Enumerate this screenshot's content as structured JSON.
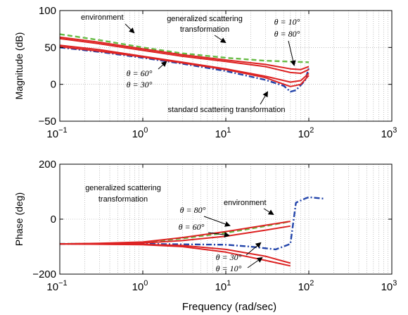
{
  "chart_data": [
    {
      "type": "line",
      "ylabel": "Magnitude (dB)",
      "xlabel": "",
      "xscale": "log",
      "xlim": [
        0.1,
        1000
      ],
      "ylim": [
        -50,
        100
      ],
      "grid": true,
      "x_ticks": [
        {
          "base": "10",
          "exp": "−1",
          "value": 0.1
        },
        {
          "base": "10",
          "exp": "0",
          "value": 1
        },
        {
          "base": "10",
          "exp": "1",
          "value": 10
        },
        {
          "base": "10",
          "exp": "2",
          "value": 100
        },
        {
          "base": "10",
          "exp": "3",
          "value": 1000
        }
      ],
      "y_ticks": [
        "−50",
        "0",
        "50",
        "100"
      ],
      "y_tick_values": [
        -50,
        0,
        50,
        100
      ],
      "annotations": {
        "environment": "environment",
        "generalized_line1": "generalized scattering",
        "generalized_line2": "transformation",
        "theta_a": "θ = 10°",
        "theta_b": "θ = 80°",
        "theta_c": "θ = 60°",
        "theta_d": "θ = 30°",
        "standard": "standard scattering transformation"
      },
      "series": [
        {
          "role": "environment",
          "color": "#66bb44",
          "style": "dashed",
          "x": [
            0.1,
            0.3,
            1,
            3,
            10,
            30,
            100
          ],
          "y": [
            68,
            60,
            50,
            42,
            36,
            32,
            30
          ]
        },
        {
          "role": "standard",
          "color": "#2244aa",
          "style": "dashdot",
          "x": [
            0.1,
            0.3,
            1,
            3,
            10,
            30,
            50,
            60,
            70,
            90,
            100
          ],
          "y": [
            50,
            44,
            36,
            28,
            18,
            6,
            -2,
            -10,
            -8,
            5,
            22
          ]
        },
        {
          "role": "theta-10",
          "color": "#dd2222",
          "style": "solid",
          "x": [
            0.1,
            0.3,
            1,
            3,
            10,
            30,
            60,
            80,
            100
          ],
          "y": [
            64,
            57,
            48,
            40,
            33,
            27,
            21,
            20,
            24
          ]
        },
        {
          "role": "theta-80",
          "color": "#dd2222",
          "style": "solid",
          "x": [
            0.1,
            0.3,
            1,
            3,
            10,
            30,
            60,
            80,
            100
          ],
          "y": [
            62,
            55,
            46,
            38,
            31,
            24,
            16,
            15,
            20
          ]
        },
        {
          "role": "theta-60",
          "color": "#dd2222",
          "style": "solid",
          "x": [
            0.1,
            0.3,
            1,
            3,
            10,
            30,
            60,
            80,
            100
          ],
          "y": [
            53,
            47,
            38,
            30,
            21,
            11,
            3,
            5,
            15
          ]
        },
        {
          "role": "theta-30",
          "color": "#dd2222",
          "style": "solid",
          "x": [
            0.1,
            0.3,
            1,
            3,
            10,
            30,
            60,
            80,
            100
          ],
          "y": [
            51,
            45,
            37,
            29,
            20,
            9,
            -3,
            0,
            12
          ]
        }
      ]
    },
    {
      "type": "line",
      "ylabel": "Phase (deg)",
      "xlabel": "Frequency (rad/sec)",
      "xscale": "log",
      "xlim": [
        0.1,
        1000
      ],
      "ylim": [
        -200,
        200
      ],
      "grid": true,
      "x_ticks": [
        {
          "base": "10",
          "exp": "−1",
          "value": 0.1
        },
        {
          "base": "10",
          "exp": "0",
          "value": 1
        },
        {
          "base": "10",
          "exp": "1",
          "value": 10
        },
        {
          "base": "10",
          "exp": "2",
          "value": 100
        },
        {
          "base": "10",
          "exp": "3",
          "value": 1000
        }
      ],
      "y_ticks": [
        "−200",
        "0",
        "200"
      ],
      "y_tick_values": [
        -200,
        0,
        200
      ],
      "annotations": {
        "generalized_line1": "generalized scattering",
        "generalized_line2": "transformation",
        "environment": "environment",
        "theta_a": "θ = 80°",
        "theta_b": "θ = 60°",
        "theta_c": "θ = 30°",
        "theta_d": "θ = 10°"
      },
      "series": [
        {
          "role": "environment",
          "color": "#66bb44",
          "style": "dashed",
          "x": [
            0.1,
            0.3,
            1,
            3,
            10,
            30,
            60
          ],
          "y": [
            -90,
            -89,
            -85,
            -70,
            -50,
            -25,
            -8
          ]
        },
        {
          "role": "standard",
          "color": "#2244aa",
          "style": "dashdot",
          "x": [
            0.1,
            1,
            10,
            20,
            40,
            60,
            70,
            90,
            100,
            150
          ],
          "y": [
            -90,
            -90,
            -93,
            -100,
            -110,
            -90,
            60,
            75,
            80,
            75
          ]
        },
        {
          "role": "theta-80",
          "color": "#dd2222",
          "style": "solid",
          "x": [
            0.1,
            0.3,
            1,
            3,
            10,
            30,
            60
          ],
          "y": [
            -90,
            -88,
            -83,
            -67,
            -45,
            -22,
            -8
          ]
        },
        {
          "role": "theta-60",
          "color": "#dd2222",
          "style": "solid",
          "x": [
            0.1,
            0.3,
            1,
            3,
            10,
            30,
            60
          ],
          "y": [
            -90,
            -89,
            -87,
            -78,
            -62,
            -40,
            -25
          ]
        },
        {
          "role": "theta-30",
          "color": "#dd2222",
          "style": "solid",
          "x": [
            0.1,
            1,
            3,
            10,
            30,
            60
          ],
          "y": [
            -90,
            -92,
            -96,
            -110,
            -135,
            -160
          ]
        },
        {
          "role": "theta-10",
          "color": "#dd2222",
          "style": "solid",
          "x": [
            0.1,
            1,
            3,
            10,
            30,
            60
          ],
          "y": [
            -90,
            -93,
            -100,
            -120,
            -150,
            -170
          ]
        }
      ]
    }
  ]
}
